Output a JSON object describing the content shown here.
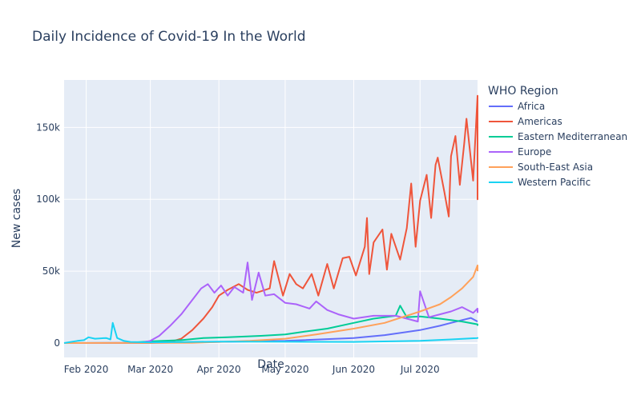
{
  "chart_data": {
    "type": "line",
    "title": "Daily Incidence of Covid-19 In the World",
    "xlabel": "Date",
    "ylabel": "New cases",
    "x_ticks": [
      "Feb 2020",
      "Mar 2020",
      "Apr 2020",
      "May 2020",
      "Jun 2020",
      "Jul 2020"
    ],
    "y_ticks": [
      "0",
      "50k",
      "100k",
      "150k"
    ],
    "xlim": [
      "2020-01-22",
      "2020-07-27"
    ],
    "ylim": [
      -10000,
      183000
    ],
    "grid": true,
    "legend_title": "WHO Region",
    "legend_position": "right",
    "series": [
      {
        "name": "Africa",
        "color": "#636efa",
        "points": [
          [
            "2020-01-22",
            0
          ],
          [
            "2020-03-01",
            50
          ],
          [
            "2020-04-01",
            800
          ],
          [
            "2020-05-01",
            1500
          ],
          [
            "2020-06-01",
            3500
          ],
          [
            "2020-06-15",
            5500
          ],
          [
            "2020-07-01",
            9000
          ],
          [
            "2020-07-10",
            12000
          ],
          [
            "2020-07-15",
            14000
          ],
          [
            "2020-07-20",
            16000
          ],
          [
            "2020-07-24",
            17500
          ],
          [
            "2020-07-27",
            15000
          ]
        ]
      },
      {
        "name": "Americas",
        "color": "#ef553b",
        "points": [
          [
            "2020-01-22",
            0
          ],
          [
            "2020-03-01",
            80
          ],
          [
            "2020-03-10",
            800
          ],
          [
            "2020-03-15",
            3000
          ],
          [
            "2020-03-20",
            9000
          ],
          [
            "2020-03-25",
            17000
          ],
          [
            "2020-03-29",
            25000
          ],
          [
            "2020-04-01",
            33000
          ],
          [
            "2020-04-05",
            37000
          ],
          [
            "2020-04-10",
            41000
          ],
          [
            "2020-04-14",
            37000
          ],
          [
            "2020-04-18",
            35000
          ],
          [
            "2020-04-24",
            38000
          ],
          [
            "2020-04-26",
            57000
          ],
          [
            "2020-04-30",
            33000
          ],
          [
            "2020-05-03",
            48000
          ],
          [
            "2020-05-06",
            41000
          ],
          [
            "2020-05-09",
            38000
          ],
          [
            "2020-05-13",
            48000
          ],
          [
            "2020-05-16",
            33000
          ],
          [
            "2020-05-20",
            55000
          ],
          [
            "2020-05-23",
            38000
          ],
          [
            "2020-05-27",
            59000
          ],
          [
            "2020-05-30",
            60000
          ],
          [
            "2020-06-02",
            47000
          ],
          [
            "2020-06-06",
            67000
          ],
          [
            "2020-06-07",
            87000
          ],
          [
            "2020-06-08",
            48000
          ],
          [
            "2020-06-10",
            70000
          ],
          [
            "2020-06-14",
            79000
          ],
          [
            "2020-06-16",
            51000
          ],
          [
            "2020-06-18",
            76000
          ],
          [
            "2020-06-22",
            58000
          ],
          [
            "2020-06-25",
            80000
          ],
          [
            "2020-06-27",
            111000
          ],
          [
            "2020-06-29",
            67000
          ],
          [
            "2020-07-01",
            99000
          ],
          [
            "2020-07-04",
            117000
          ],
          [
            "2020-07-06",
            87000
          ],
          [
            "2020-07-08",
            124000
          ],
          [
            "2020-07-09",
            129000
          ],
          [
            "2020-07-12",
            105000
          ],
          [
            "2020-07-14",
            88000
          ],
          [
            "2020-07-15",
            130000
          ],
          [
            "2020-07-17",
            144000
          ],
          [
            "2020-07-19",
            110000
          ],
          [
            "2020-07-21",
            139000
          ],
          [
            "2020-07-22",
            156000
          ],
          [
            "2020-07-25",
            113000
          ],
          [
            "2020-07-27",
            172000
          ],
          [
            "2020-07-29",
            160000
          ],
          [
            "2020-07-31",
            100000
          ],
          [
            "2020-08-01",
            130000
          ]
        ]
      },
      {
        "name": "Eastern Mediterranean",
        "color": "#00cc96",
        "points": [
          [
            "2020-01-22",
            0
          ],
          [
            "2020-02-20",
            200
          ],
          [
            "2020-03-01",
            1200
          ],
          [
            "2020-03-15",
            2000
          ],
          [
            "2020-03-25",
            3500
          ],
          [
            "2020-04-05",
            4000
          ],
          [
            "2020-04-20",
            5000
          ],
          [
            "2020-05-01",
            6000
          ],
          [
            "2020-05-10",
            8000
          ],
          [
            "2020-05-20",
            10000
          ],
          [
            "2020-06-01",
            14000
          ],
          [
            "2020-06-10",
            17000
          ],
          [
            "2020-06-20",
            19000
          ],
          [
            "2020-06-22",
            26000
          ],
          [
            "2020-06-25",
            18000
          ],
          [
            "2020-07-01",
            18500
          ],
          [
            "2020-07-10",
            17000
          ],
          [
            "2020-07-20",
            15000
          ],
          [
            "2020-07-27",
            13000
          ],
          [
            "2020-08-01",
            12000
          ]
        ]
      },
      {
        "name": "Europe",
        "color": "#ab63fa",
        "points": [
          [
            "2020-01-22",
            0
          ],
          [
            "2020-02-25",
            100
          ],
          [
            "2020-03-01",
            1500
          ],
          [
            "2020-03-05",
            5000
          ],
          [
            "2020-03-10",
            12000
          ],
          [
            "2020-03-15",
            20000
          ],
          [
            "2020-03-20",
            30000
          ],
          [
            "2020-03-24",
            38000
          ],
          [
            "2020-03-27",
            41000
          ],
          [
            "2020-03-30",
            35000
          ],
          [
            "2020-04-02",
            40000
          ],
          [
            "2020-04-05",
            33000
          ],
          [
            "2020-04-08",
            39000
          ],
          [
            "2020-04-12",
            35000
          ],
          [
            "2020-04-14",
            56000
          ],
          [
            "2020-04-16",
            30000
          ],
          [
            "2020-04-19",
            49000
          ],
          [
            "2020-04-22",
            33000
          ],
          [
            "2020-04-26",
            34000
          ],
          [
            "2020-05-01",
            28000
          ],
          [
            "2020-05-06",
            27000
          ],
          [
            "2020-05-12",
            24000
          ],
          [
            "2020-05-15",
            29000
          ],
          [
            "2020-05-20",
            23000
          ],
          [
            "2020-05-25",
            20000
          ],
          [
            "2020-06-01",
            17000
          ],
          [
            "2020-06-10",
            19000
          ],
          [
            "2020-06-20",
            19000
          ],
          [
            "2020-06-25",
            17000
          ],
          [
            "2020-06-30",
            15000
          ],
          [
            "2020-07-01",
            36000
          ],
          [
            "2020-07-05",
            18000
          ],
          [
            "2020-07-10",
            20000
          ],
          [
            "2020-07-15",
            22000
          ],
          [
            "2020-07-20",
            25000
          ],
          [
            "2020-07-25",
            21000
          ],
          [
            "2020-07-29",
            24000
          ],
          [
            "2020-08-01",
            21000
          ]
        ]
      },
      {
        "name": "South-East Asia",
        "color": "#ffa15a",
        "points": [
          [
            "2020-01-22",
            0
          ],
          [
            "2020-03-20",
            200
          ],
          [
            "2020-04-01",
            800
          ],
          [
            "2020-04-15",
            1500
          ],
          [
            "2020-05-01",
            3000
          ],
          [
            "2020-05-15",
            6000
          ],
          [
            "2020-06-01",
            10000
          ],
          [
            "2020-06-15",
            14000
          ],
          [
            "2020-07-01",
            22000
          ],
          [
            "2020-07-10",
            27000
          ],
          [
            "2020-07-15",
            32000
          ],
          [
            "2020-07-20",
            38000
          ],
          [
            "2020-07-25",
            46000
          ],
          [
            "2020-07-29",
            54000
          ],
          [
            "2020-07-31",
            53000
          ],
          [
            "2020-08-01",
            50000
          ]
        ]
      },
      {
        "name": "Western Pacific",
        "color": "#19d3f3",
        "points": [
          [
            "2020-01-22",
            0
          ],
          [
            "2020-01-28",
            1500
          ],
          [
            "2020-01-31",
            2000
          ],
          [
            "2020-02-02",
            4000
          ],
          [
            "2020-02-05",
            3000
          ],
          [
            "2020-02-10",
            3500
          ],
          [
            "2020-02-12",
            2500
          ],
          [
            "2020-02-13",
            14000
          ],
          [
            "2020-02-15",
            3500
          ],
          [
            "2020-02-18",
            1500
          ],
          [
            "2020-02-21",
            800
          ],
          [
            "2020-03-01",
            500
          ],
          [
            "2020-03-15",
            700
          ],
          [
            "2020-04-01",
            1000
          ],
          [
            "2020-05-01",
            900
          ],
          [
            "2020-06-01",
            800
          ],
          [
            "2020-07-01",
            1500
          ],
          [
            "2020-07-15",
            2500
          ],
          [
            "2020-07-27",
            3500
          ],
          [
            "2020-08-01",
            4000
          ]
        ]
      }
    ]
  }
}
